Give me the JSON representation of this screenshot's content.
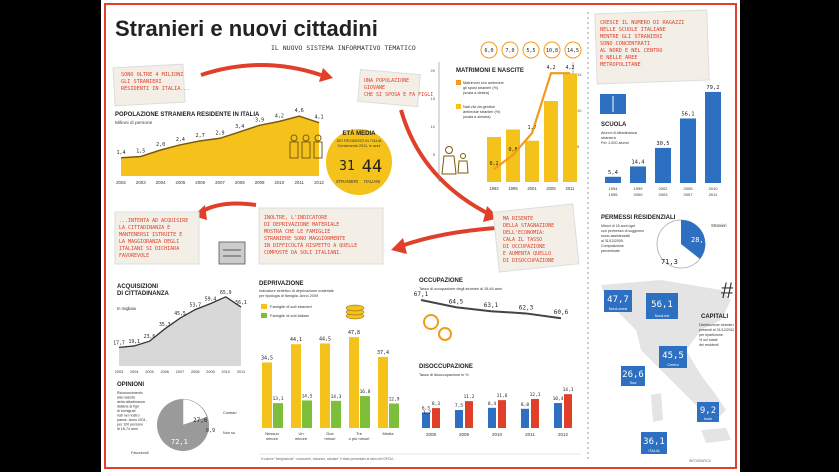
{
  "header": {
    "title": "Stranieri e nuovi cittadini",
    "subtitle": "IL NUOVO SISTEMA INFORMATIVO TEMATICO"
  },
  "colors": {
    "frame": "#e0402a",
    "yellow": "#f4c21b",
    "orange": "#f29a1a",
    "blue": "#2d6fc0",
    "green": "#7dbf3a",
    "grey": "#9a9a9a",
    "red": "#e0402a",
    "notes": "#e8e2d4"
  },
  "notes": {
    "note1": [
      "SONO OLTRE 4 MILIONI",
      "GLI STRANIERI",
      "RESIDENTI IN ITALIA..."
    ],
    "note2": [
      "UNA POPOLAZIONE",
      "GIOVANE",
      "CHE SI SPOSA E FA FIGLI"
    ],
    "note3": [
      "...INTENTA AD ACQUISIRE",
      "LA CITTADINANZA E",
      "MANTENERSI ISTRUITE E",
      "LA MAGGIORANZA DEGLI",
      "ITALIANI SI DICHIARA",
      "FAVOREVOLE"
    ],
    "note4": [
      "INOLTRE, L'INDICATORE",
      "DI DEPRIVAZIONE MATERIALE",
      "MOSTRA CHE LE FAMIGLIE",
      "STRANIERE SONO MAGGIORMENTE",
      "IN DIFFICOLTÀ RISPETTO A QUELLE",
      "COMPOSTE DA SOLI ITALIANI."
    ],
    "note5": [
      "MA RISENTE",
      "DELLA STAGNAZIONE",
      "DELL'ECONOMIA:",
      "CALA IL TASSO",
      "DI OCCUPAZIONE",
      "E AUMENTA QUELLO",
      "DI DISOCCUPAZIONE"
    ],
    "note6": [
      "CRESCE IL NUMERO DI RAGAZZI",
      "NELLE SCUOLE ITALIANE",
      "MENTRE GLI STRANIERI",
      "SONO CONCENTRATI",
      "AL NORD E NEL CENTRO",
      "E NELLE AREE",
      "METROPOLITANE"
    ]
  },
  "population": {
    "title": "POPOLAZIONE STRANIERA RESIDENTE IN ITALIA",
    "unit": "Milioni di persone",
    "values": [
      "1,4",
      "1,5",
      "2,0",
      "2,4",
      "2,7",
      "2,9",
      "3,4",
      "3,9",
      "4,2",
      "4,6",
      "4,1"
    ],
    "years": [
      "2002",
      "2003",
      "2004",
      "2005",
      "2006",
      "2007",
      "2008",
      "2009",
      "2010",
      "2011",
      "2012"
    ]
  },
  "age": {
    "title": "ETÀ MEDIA",
    "desc1": "DEI RESIDENTI IN ITALIA",
    "desc2": "Censimento 2011, in anni",
    "val_foreign": "31",
    "val_italian": "44",
    "label_foreign": "STRANIERI",
    "label_italian": "ITALIANI"
  },
  "marriages": {
    "title": "MATRIMONI E NASCITE",
    "legend1": "Matrimoni con ambedue gli sposi stranieri (%) (scala a destra)",
    "legend2": "Nati vivi da genitori ambedue stranieri (%) (scala a sinistra)",
    "top": [
      "6,0",
      "7,0",
      "5,5",
      "10,8",
      "14,5"
    ],
    "values": [
      "0,2",
      "0,8",
      "1,7",
      "4,2",
      "4,2"
    ],
    "years": [
      "1992",
      "1995",
      "2001",
      "2005",
      "2011"
    ],
    "axis_left": [
      "5",
      "10",
      "15",
      "20"
    ],
    "axis_right": [
      "5",
      "10",
      "15"
    ]
  },
  "school": {
    "title": "SCUOLA",
    "desc": "Alunni di cittadinanza straniera Per 1.000 alunni",
    "values": [
      "5,4",
      "14,4",
      "30,5",
      "56,1",
      "79,2"
    ],
    "years": [
      "1994",
      "1999",
      "2002",
      "2005",
      "2010"
    ],
    "years2": [
      "1995",
      "2000",
      "2003",
      "2007",
      "2011"
    ]
  },
  "permits": {
    "title": "PERMESSI RESIDENZIALI",
    "desc": "Milioni di 16 anni ogni con permesso di soggiorno socio-assistenziali al 31/12/2009. Composizione percentuale",
    "val_small": "28,7",
    "val_big": "71,3",
    "label": "Stranieri"
  },
  "citizenship": {
    "title": "ACQUISIZIONI DI CITTADINANZA",
    "unit": "In migliaia",
    "values": [
      "17,7",
      "19,1",
      "23,6",
      "35,3",
      "45,5",
      "53,7",
      "59,4",
      "65,9",
      "56,1"
    ],
    "years": [
      "2003",
      "2004",
      "2005",
      "2006",
      "2007",
      "2008",
      "2009",
      "2010",
      "2011"
    ]
  },
  "opinions": {
    "title": "OPINIONI",
    "desc": "Riconoscimento alla nascita della cittadinanza italiana ai figli di immigrati nati nel nostro paese. Anno 2011, per 100 persone di 18-74 anni",
    "val_contrari": "27,6",
    "val_nonso": "0,9",
    "val_fav": "72,1",
    "label_contrari": "Contrari",
    "label_nonso": "Non so",
    "label_fav": "Favorevoli"
  },
  "deprivation": {
    "title": "DEPRIVAZIONE",
    "desc": "Indicatore sintetico di deprivazione materiale per tipologia di famiglia. Anno 2009",
    "legend_foreign": "Famiglie di soli stranieri",
    "legend_italian": "Famiglie di soli italiani",
    "cats": [
      "Nessun minore",
      "Un minore",
      "Due minori",
      "Tre o più minori",
      "Media"
    ],
    "foreign": [
      34.5,
      44.1,
      44.5,
      47.8,
      37.4
    ],
    "italian": [
      13.1,
      14.5,
      14.3,
      16.8,
      12.9
    ],
    "foreign_labels": [
      "34,5",
      "44,1",
      "44,5",
      "47,8",
      "37,4"
    ],
    "italian_labels": [
      "13,1",
      "14,5",
      "14,3",
      "16,8",
      "12,9"
    ]
  },
  "employment": {
    "title": "OCCUPAZIONE",
    "desc": "Tasso di occupazione degli stranieri di 15-64 anni",
    "values": [
      "67,1",
      "64,5",
      "63,1",
      "62,3",
      "60,6"
    ],
    "unemp_title": "DISOCCUPAZIONE",
    "unemp_desc": "Tasso di disoccupazione in %",
    "unemp_foreign": [
      "8,3",
      "11,2",
      "11,6",
      "12,1",
      "14,1"
    ],
    "unemp_italian": [
      "6,5",
      "7,5",
      "8,4",
      "8,0",
      "10,4"
    ],
    "unemp_extra": [
      "1,7"
    ],
    "years": [
      "2008",
      "2009",
      "2010",
      "2011",
      "2012"
    ]
  },
  "map": {
    "title": "CAPITALI",
    "desc": "Distribuzione stranieri presenti al 31/12/2011 per ripartizione. % sul totale dei residenti",
    "bubbles": [
      {
        "v": "47,7",
        "l": "Nord-ovest"
      },
      {
        "v": "56,1",
        "l": "Nord-est"
      },
      {
        "v": "45,5",
        "l": "Centro"
      },
      {
        "v": "26,6",
        "l": "Sud"
      },
      {
        "v": "9,2",
        "l": "Isole"
      },
      {
        "v": "36,1",
        "l": "ITALIA"
      }
    ]
  },
  "footer": {
    "notes": "Il volume \"Integrazione\": conoscere, misurare, valutare\" è stato presentato ai sensi del DPCM...",
    "credit": "INFOGRAFICA"
  }
}
